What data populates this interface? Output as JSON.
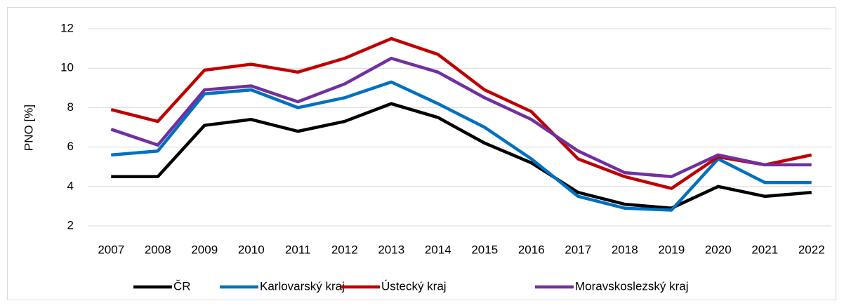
{
  "chart_data": {
    "type": "line",
    "y_label": "PNO [%]",
    "categories": [
      "2007",
      "2008",
      "2009",
      "2010",
      "2011",
      "2012",
      "2013",
      "2014",
      "2015",
      "2016",
      "2017",
      "2018",
      "2019",
      "2020",
      "2021",
      "2022"
    ],
    "series": [
      {
        "name": "ČR",
        "color": "#000000",
        "values": [
          4.5,
          4.5,
          7.1,
          7.4,
          6.8,
          7.3,
          8.2,
          7.5,
          6.2,
          5.2,
          3.7,
          3.1,
          2.9,
          4.0,
          3.5,
          3.7
        ]
      },
      {
        "name": "Karlovarský kraj",
        "color": "#0070c0",
        "values": [
          5.6,
          5.8,
          8.7,
          8.9,
          8.0,
          8.5,
          9.3,
          8.2,
          7.0,
          5.4,
          3.5,
          2.9,
          2.8,
          5.4,
          4.2,
          4.2
        ]
      },
      {
        "name": "Ústecký kraj",
        "color": "#c00000",
        "values": [
          7.9,
          7.3,
          9.9,
          10.2,
          9.8,
          10.5,
          11.5,
          10.7,
          8.9,
          7.8,
          5.4,
          4.5,
          3.9,
          5.5,
          5.1,
          5.6
        ]
      },
      {
        "name": "Moravskoslezský kraj",
        "color": "#7030a0",
        "values": [
          6.9,
          6.1,
          8.9,
          9.1,
          8.3,
          9.2,
          10.5,
          9.8,
          8.5,
          7.4,
          5.8,
          4.7,
          4.5,
          5.6,
          5.1,
          5.1
        ]
      }
    ],
    "ylim": [
      2,
      12
    ],
    "yticks": [
      2,
      4,
      6,
      8,
      10,
      12
    ],
    "grid": true,
    "legend": "bottom"
  }
}
